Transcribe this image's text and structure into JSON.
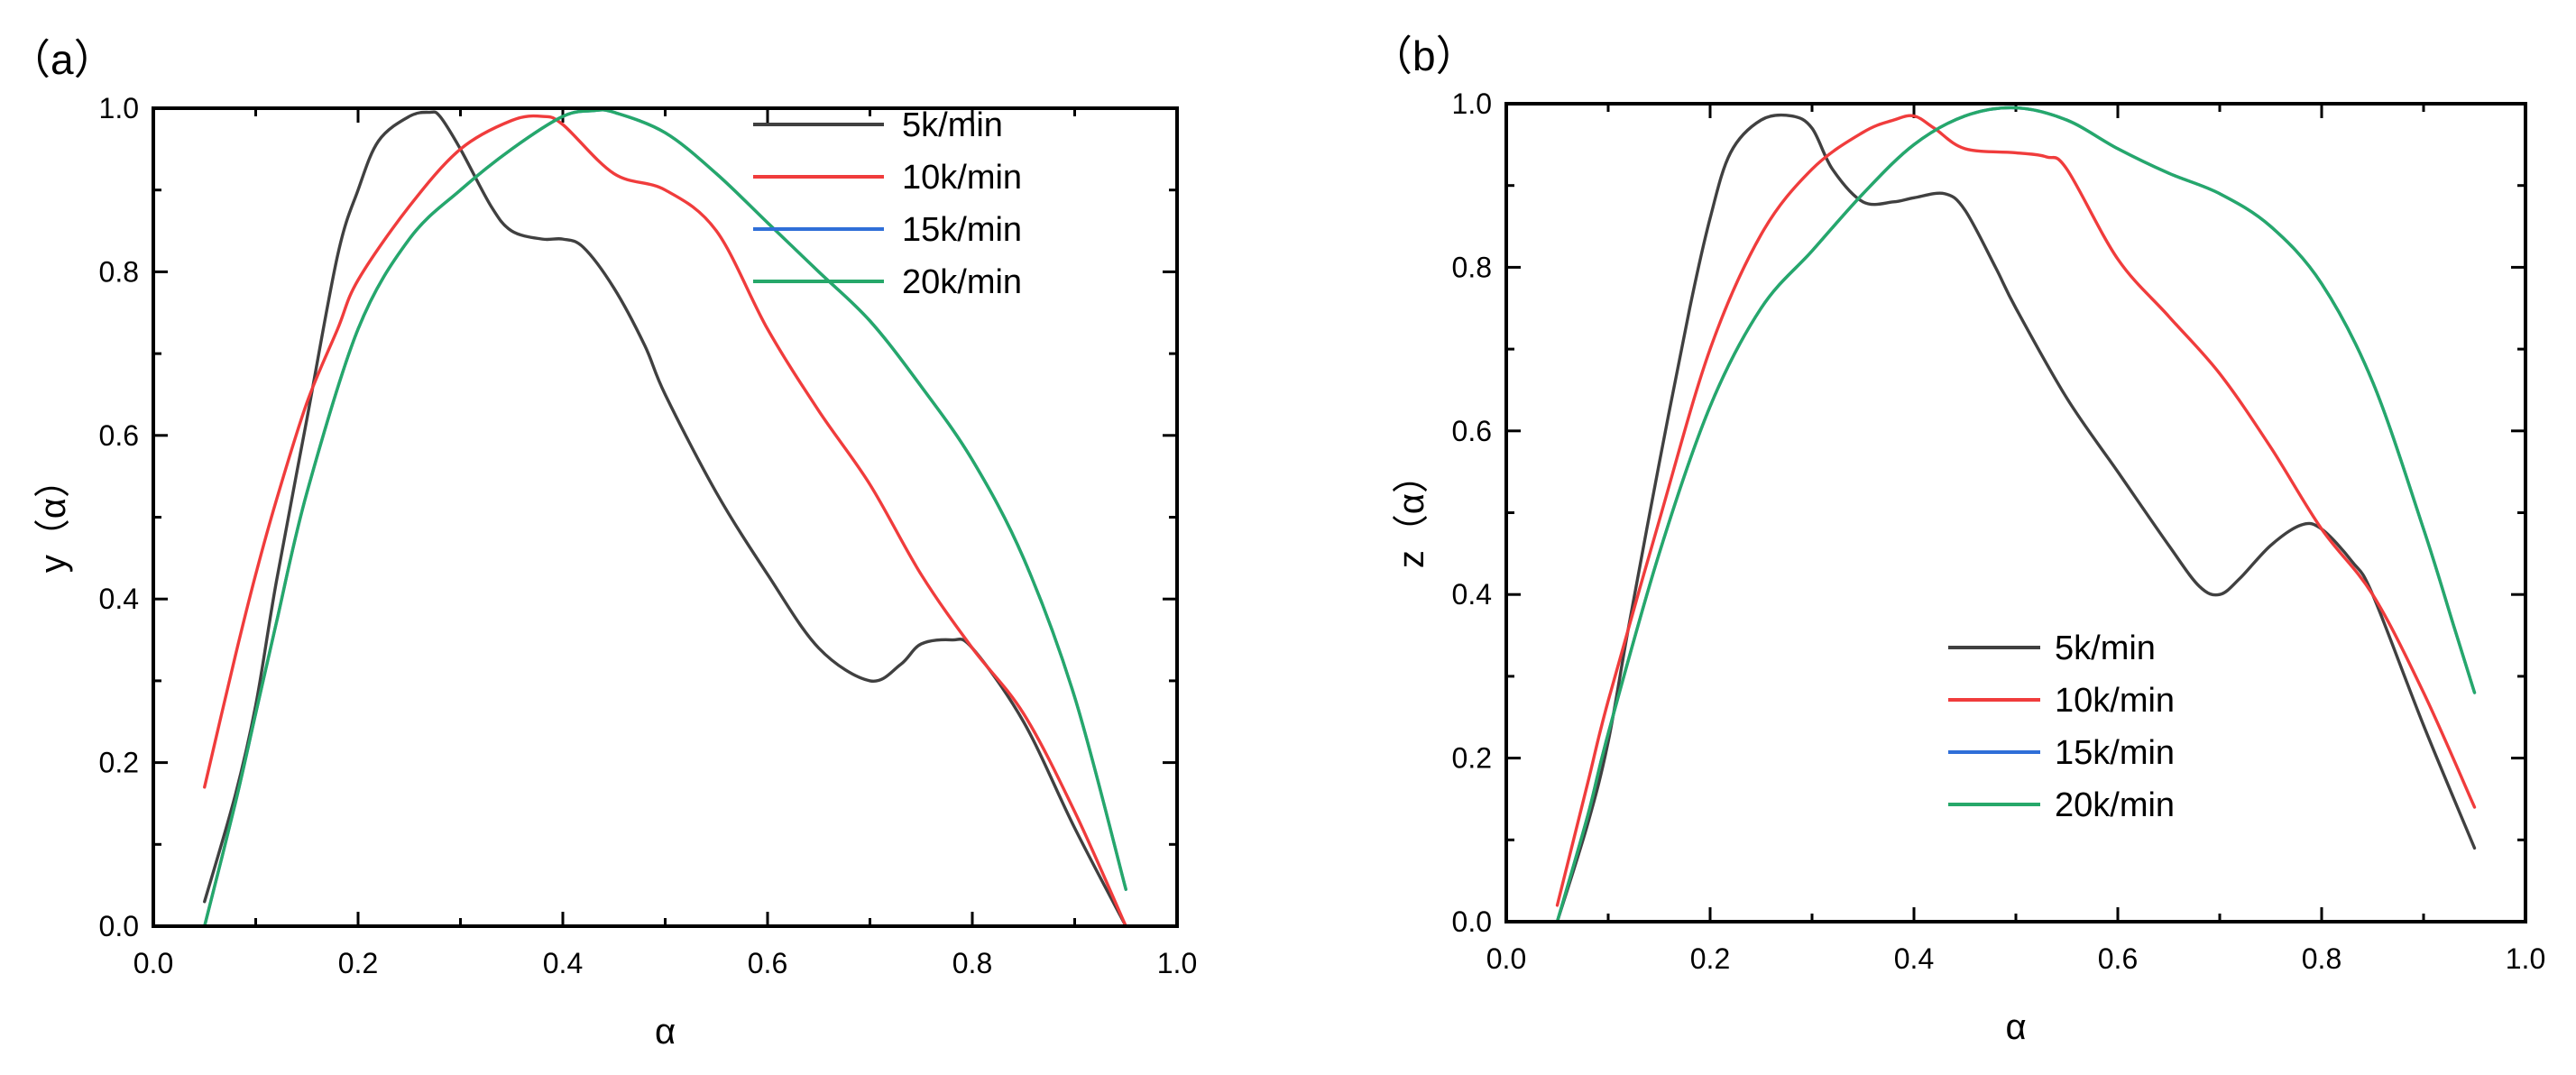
{
  "chart_data": [
    {
      "type": "line",
      "panel_label": "（a）",
      "xlabel": "α",
      "ylabel": "y（α）",
      "xlim": [
        0.0,
        1.0
      ],
      "ylim": [
        0.0,
        1.0
      ],
      "xticks": [
        "0.0",
        "0.2",
        "0.4",
        "0.6",
        "0.8",
        "1.0"
      ],
      "yticks": [
        "0.0",
        "0.2",
        "0.4",
        "0.6",
        "0.8",
        "1.0"
      ],
      "legend_position": "top-right",
      "series": [
        {
          "name": "5k/min",
          "color": "#404040",
          "x": [
            0.05,
            0.08,
            0.1,
            0.12,
            0.15,
            0.18,
            0.2,
            0.22,
            0.25,
            0.27,
            0.28,
            0.3,
            0.33,
            0.35,
            0.38,
            0.4,
            0.42,
            0.45,
            0.48,
            0.5,
            0.55,
            0.6,
            0.65,
            0.7,
            0.73,
            0.75,
            0.78,
            0.8,
            0.85,
            0.9,
            0.95
          ],
          "y": [
            0.03,
            0.16,
            0.27,
            0.42,
            0.62,
            0.82,
            0.9,
            0.96,
            0.99,
            0.995,
            0.99,
            0.95,
            0.88,
            0.85,
            0.84,
            0.84,
            0.83,
            0.78,
            0.71,
            0.65,
            0.53,
            0.43,
            0.34,
            0.3,
            0.32,
            0.345,
            0.35,
            0.34,
            0.25,
            0.12,
            0.0
          ]
        },
        {
          "name": "10k/min",
          "color": "#f03c3c",
          "x": [
            0.05,
            0.08,
            0.1,
            0.12,
            0.15,
            0.18,
            0.2,
            0.25,
            0.3,
            0.35,
            0.38,
            0.4,
            0.45,
            0.5,
            0.55,
            0.6,
            0.65,
            0.7,
            0.75,
            0.8,
            0.85,
            0.9,
            0.95
          ],
          "y": [
            0.17,
            0.33,
            0.43,
            0.52,
            0.64,
            0.73,
            0.79,
            0.88,
            0.95,
            0.985,
            0.99,
            0.98,
            0.92,
            0.9,
            0.85,
            0.73,
            0.63,
            0.54,
            0.43,
            0.34,
            0.26,
            0.14,
            0.0
          ]
        },
        {
          "name": "15k/min",
          "color": "#2f6fd8",
          "x": [
            0.05,
            0.08,
            0.1,
            0.12,
            0.15,
            0.2,
            0.25,
            0.3,
            0.35,
            0.4,
            0.43,
            0.45,
            0.5,
            0.55,
            0.6,
            0.65,
            0.7,
            0.75,
            0.8,
            0.85,
            0.9,
            0.95
          ],
          "y": [
            0.0,
            0.15,
            0.26,
            0.37,
            0.53,
            0.73,
            0.84,
            0.9,
            0.95,
            0.99,
            0.997,
            0.995,
            0.97,
            0.92,
            0.86,
            0.8,
            0.74,
            0.66,
            0.57,
            0.45,
            0.28,
            0.045
          ]
        },
        {
          "name": "20k/min",
          "color": "#26a86a",
          "x": [
            0.05,
            0.08,
            0.1,
            0.12,
            0.15,
            0.2,
            0.25,
            0.3,
            0.35,
            0.4,
            0.43,
            0.45,
            0.5,
            0.55,
            0.6,
            0.65,
            0.7,
            0.75,
            0.8,
            0.85,
            0.9,
            0.95
          ],
          "y": [
            0.0,
            0.15,
            0.26,
            0.37,
            0.53,
            0.73,
            0.84,
            0.9,
            0.95,
            0.99,
            0.997,
            0.995,
            0.97,
            0.92,
            0.86,
            0.8,
            0.74,
            0.66,
            0.57,
            0.45,
            0.28,
            0.045
          ]
        }
      ]
    },
    {
      "type": "line",
      "panel_label": "（b）",
      "xlabel": "α",
      "ylabel": "z（α）",
      "xlim": [
        0.0,
        1.0
      ],
      "ylim": [
        0.0,
        1.0
      ],
      "xticks": [
        "0.0",
        "0.2",
        "0.4",
        "0.6",
        "0.8",
        "1.0"
      ],
      "yticks": [
        "0.0",
        "0.2",
        "0.4",
        "0.6",
        "0.8",
        "1.0"
      ],
      "legend_position": "bottom-center",
      "series": [
        {
          "name": "5k/min",
          "color": "#404040",
          "x": [
            0.05,
            0.08,
            0.1,
            0.12,
            0.15,
            0.18,
            0.2,
            0.22,
            0.25,
            0.28,
            0.3,
            0.32,
            0.35,
            0.38,
            0.4,
            0.43,
            0.45,
            0.48,
            0.5,
            0.55,
            0.6,
            0.65,
            0.68,
            0.7,
            0.72,
            0.75,
            0.78,
            0.8,
            0.83,
            0.85,
            0.9,
            0.95
          ],
          "y": [
            0.0,
            0.12,
            0.22,
            0.36,
            0.56,
            0.75,
            0.86,
            0.94,
            0.98,
            0.985,
            0.97,
            0.92,
            0.88,
            0.88,
            0.885,
            0.89,
            0.87,
            0.8,
            0.75,
            0.64,
            0.55,
            0.46,
            0.41,
            0.4,
            0.42,
            0.46,
            0.485,
            0.48,
            0.44,
            0.4,
            0.24,
            0.09
          ]
        },
        {
          "name": "10k/min",
          "color": "#f03c3c",
          "x": [
            0.05,
            0.08,
            0.1,
            0.15,
            0.2,
            0.25,
            0.3,
            0.35,
            0.38,
            0.4,
            0.42,
            0.45,
            0.5,
            0.53,
            0.55,
            0.6,
            0.65,
            0.7,
            0.75,
            0.8,
            0.85,
            0.9,
            0.95
          ],
          "y": [
            0.02,
            0.17,
            0.27,
            0.49,
            0.7,
            0.84,
            0.92,
            0.965,
            0.98,
            0.985,
            0.97,
            0.945,
            0.94,
            0.935,
            0.92,
            0.81,
            0.74,
            0.67,
            0.58,
            0.48,
            0.4,
            0.28,
            0.14
          ]
        },
        {
          "name": "15k/min",
          "color": "#2f6fd8",
          "x": [
            0.05,
            0.08,
            0.1,
            0.15,
            0.2,
            0.25,
            0.3,
            0.35,
            0.4,
            0.45,
            0.5,
            0.55,
            0.6,
            0.65,
            0.7,
            0.75,
            0.8,
            0.85,
            0.9,
            0.93,
            0.95
          ],
          "y": [
            0.0,
            0.13,
            0.23,
            0.45,
            0.63,
            0.75,
            0.82,
            0.89,
            0.95,
            0.985,
            0.995,
            0.98,
            0.945,
            0.915,
            0.89,
            0.85,
            0.78,
            0.66,
            0.48,
            0.36,
            0.28
          ]
        },
        {
          "name": "20k/min",
          "color": "#26a86a",
          "x": [
            0.05,
            0.08,
            0.1,
            0.15,
            0.2,
            0.25,
            0.3,
            0.35,
            0.4,
            0.45,
            0.5,
            0.55,
            0.6,
            0.65,
            0.7,
            0.75,
            0.8,
            0.85,
            0.9,
            0.93,
            0.95
          ],
          "y": [
            0.0,
            0.13,
            0.23,
            0.45,
            0.63,
            0.75,
            0.82,
            0.89,
            0.95,
            0.985,
            0.995,
            0.98,
            0.945,
            0.915,
            0.89,
            0.85,
            0.78,
            0.66,
            0.48,
            0.36,
            0.28
          ]
        }
      ]
    }
  ]
}
